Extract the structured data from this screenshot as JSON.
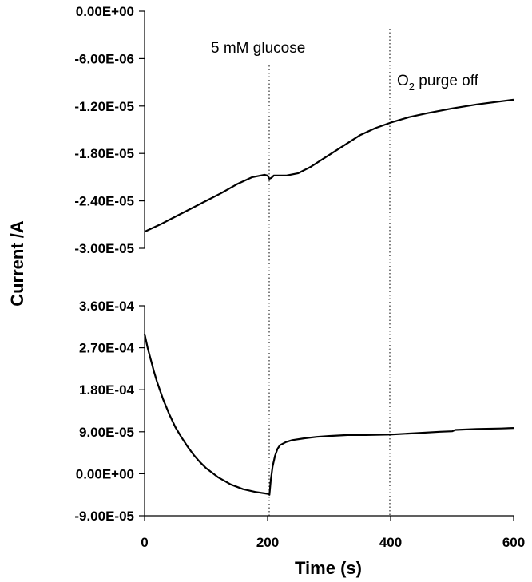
{
  "chart_data": {
    "type": "line",
    "xlabel": "Time (s)",
    "ylabel": "Current /A",
    "xlim": [
      0,
      600
    ],
    "x_ticks": [
      "0",
      "200",
      "400",
      "600"
    ],
    "x_tick_values": [
      0,
      200,
      400,
      600
    ],
    "grid": false,
    "annotations": [
      {
        "text": "5 mM glucose",
        "x": 203
      },
      {
        "text_main": "O",
        "text_sub": "2",
        "text_rest": " purge off",
        "x": 397
      }
    ],
    "panels": [
      {
        "ylim": [
          -3e-05,
          0.0
        ],
        "y_ticks": [
          "0.00E+00",
          "-6.00E-06",
          "-1.20E-05",
          "-1.80E-05",
          "-2.40E-05",
          "-3.00E-05"
        ],
        "y_tick_values": [
          0.0,
          -6e-06,
          -1.2e-05,
          -1.8e-05,
          -2.4e-05,
          -3e-05
        ],
        "series": [
          {
            "x": [
              0,
              25,
              50,
              75,
              100,
              125,
              150,
              175,
              195,
              200,
              203,
              206,
              210,
              230,
              250,
              270,
              290,
              310,
              330,
              350,
              375,
              400,
              430,
              460,
              500,
              540,
              570,
              600
            ],
            "values": [
              -2.79e-05,
              -2.7e-05,
              -2.6e-05,
              -2.5e-05,
              -2.4e-05,
              -2.3e-05,
              -2.19e-05,
              -2.1e-05,
              -2.07e-05,
              -2.08e-05,
              -2.12e-05,
              -2.11e-05,
              -2.08e-05,
              -2.08e-05,
              -2.05e-05,
              -1.97e-05,
              -1.87e-05,
              -1.77e-05,
              -1.67e-05,
              -1.57e-05,
              -1.48e-05,
              -1.41e-05,
              -1.34e-05,
              -1.29e-05,
              -1.23e-05,
              -1.18e-05,
              -1.15e-05,
              -1.12e-05
            ]
          }
        ]
      },
      {
        "ylim": [
          -9e-05,
          0.00036
        ],
        "y_ticks": [
          "3.60E-04",
          "2.70E-04",
          "1.80E-04",
          "9.00E-05",
          "0.00E+00",
          "-9.00E-05"
        ],
        "y_tick_values": [
          0.00036,
          0.00027,
          0.00018,
          9e-05,
          0.0,
          -9e-05
        ],
        "series": [
          {
            "x": [
              0,
              5,
              10,
              15,
              20,
              30,
              40,
              50,
              60,
              70,
              80,
              90,
              100,
              120,
              140,
              160,
              180,
              200,
              203,
              205,
              208,
              212,
              216,
              220,
              230,
              240,
              260,
              280,
              300,
              330,
              360,
              400,
              440,
              480,
              500,
              505,
              540,
              580,
              600
            ],
            "values": [
              0.0003,
              0.00027,
              0.000245,
              0.00022,
              0.000198,
              0.00016,
              0.000128,
              0.0001,
              7.8e-05,
              5.8e-05,
              4e-05,
              2.5e-05,
              1.2e-05,
              -8e-06,
              -2.3e-05,
              -3.3e-05,
              -3.9e-05,
              -4.3e-05,
              -4.5e-05,
              -1.5e-05,
              1.5e-05,
              3.8e-05,
              5.3e-05,
              6.1e-05,
              6.8e-05,
              7.2e-05,
              7.6e-05,
              7.9e-05,
              8.1e-05,
              8.3e-05,
              8.3e-05,
              8.4e-05,
              8.7e-05,
              9e-05,
              9.1e-05,
              9.4e-05,
              9.6e-05,
              9.7e-05,
              9.8e-05
            ]
          }
        ]
      }
    ]
  }
}
